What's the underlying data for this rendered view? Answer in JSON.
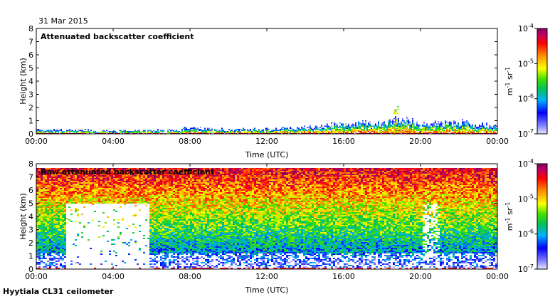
{
  "date": "31 Mar 2015",
  "footer": "Hyytiala CL31 ceilometer",
  "chart_data": [
    {
      "type": "heatmap",
      "title": "Attenuated backscatter coefficient",
      "xlabel": "Time (UTC)",
      "ylabel": "Height (km)",
      "xticks": [
        "00:00",
        "04:00",
        "08:00",
        "12:00",
        "16:00",
        "20:00",
        "00:00"
      ],
      "xlim_hours": [
        0,
        24
      ],
      "ylim": [
        0,
        8
      ],
      "yticks": [
        0,
        1,
        2,
        3,
        4,
        5,
        6,
        7,
        8
      ],
      "colorbar": {
        "label": "m-1 sr-1",
        "scale": "log",
        "range": [
          1e-07,
          0.0001
        ],
        "ticks": [
          {
            "base": "10",
            "exp": "-4",
            "value": 0.0001
          },
          {
            "base": "10",
            "exp": "-5",
            "value": 1e-05
          },
          {
            "base": "10",
            "exp": "-6",
            "value": 1e-06
          },
          {
            "base": "10",
            "exp": "-7",
            "value": 1e-07
          }
        ]
      },
      "signal_description": {
        "boundary_layer_top_km_by_hour": [
          [
            0,
            0.35
          ],
          [
            3,
            0.3
          ],
          [
            6,
            0.3
          ],
          [
            8,
            0.45
          ],
          [
            10,
            0.4
          ],
          [
            12,
            0.4
          ],
          [
            14,
            0.55
          ],
          [
            16,
            0.8
          ],
          [
            18,
            0.9
          ],
          [
            19,
            1.2
          ],
          [
            20,
            0.8
          ],
          [
            22,
            0.9
          ],
          [
            24,
            0.6
          ]
        ],
        "notable_features": [
          {
            "time_h": 18.7,
            "height_km": 2.2,
            "note": "isolated cloud/signal spike"
          }
        ]
      }
    },
    {
      "type": "heatmap",
      "title": "Raw attenuated backscatter coefficient",
      "xlabel": "Time (UTC)",
      "ylabel": "Height (km)",
      "xticks": [
        "00:00",
        "04:00",
        "08:00",
        "12:00",
        "16:00",
        "20:00",
        "00:00"
      ],
      "xlim_hours": [
        0,
        24
      ],
      "ylim": [
        0,
        8
      ],
      "yticks": [
        0,
        1,
        2,
        3,
        4,
        5,
        6,
        7,
        8
      ],
      "colorbar": {
        "label": "m-1 sr-1",
        "scale": "log",
        "range": [
          1e-07,
          0.0001
        ],
        "ticks": [
          {
            "base": "10",
            "exp": "-4",
            "value": 0.0001
          },
          {
            "base": "10",
            "exp": "-5",
            "value": 1e-05
          },
          {
            "base": "10",
            "exp": "-6",
            "value": 1e-06
          },
          {
            "base": "10",
            "exp": "-7",
            "value": 1e-07
          }
        ]
      },
      "signal_description": {
        "low_signal_block": {
          "time_h": [
            1.5,
            5.8
          ],
          "height_km": [
            0.1,
            5.0
          ]
        },
        "noise_increase_with_height": true
      }
    }
  ]
}
